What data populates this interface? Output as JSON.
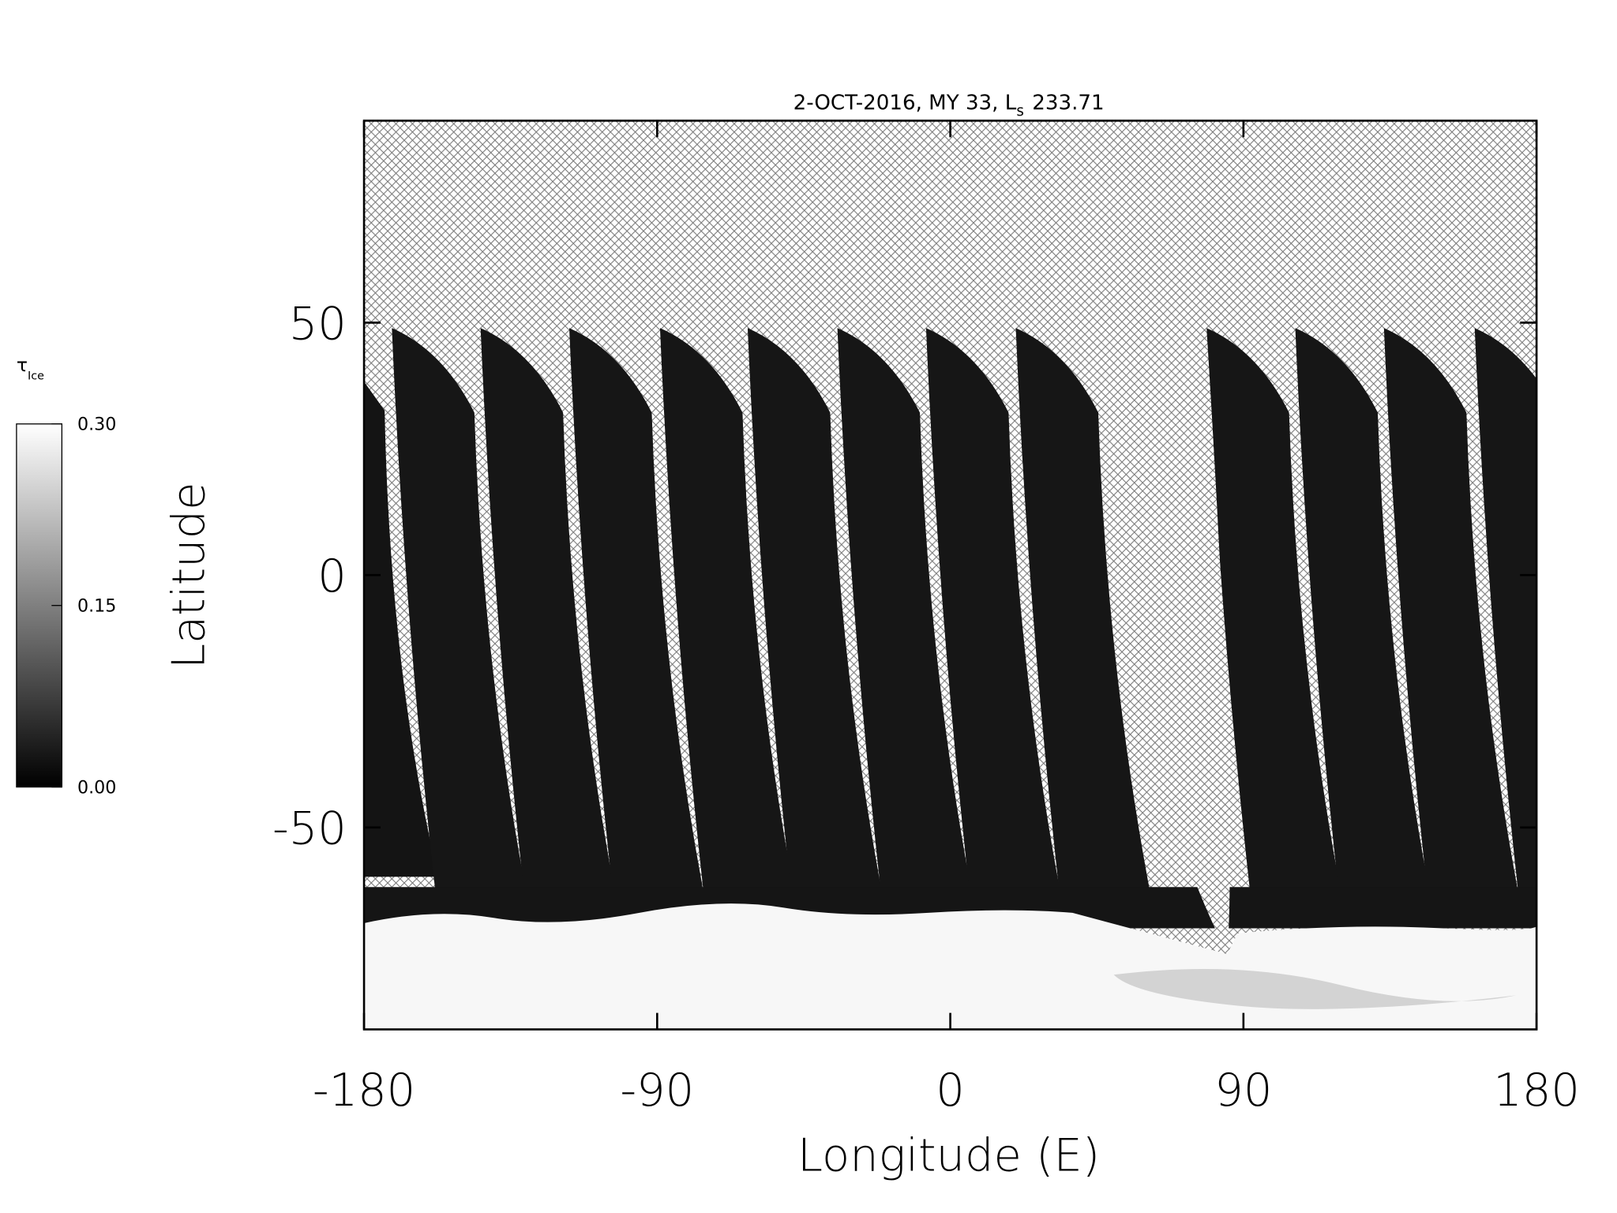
{
  "chart_data": {
    "type": "map",
    "title": {
      "text": "2-OCT-2016, MY 33,  L",
      "subscript": "s",
      "value": 233.71
    },
    "x_label": "Longitude (E)",
    "y_label": "Latitude",
    "xlim": [
      -180,
      180
    ],
    "xticks": [
      -180,
      -90,
      0,
      90,
      180
    ],
    "ylim": [
      -90,
      90
    ],
    "yticks": [
      -50,
      0,
      50
    ],
    "colorbar": {
      "label": "τ",
      "label_subscript": "Ice",
      "lim": [
        0,
        0.3
      ],
      "ticks": [
        {
          "value": 0,
          "label": "0.00"
        },
        {
          "value": 0.15,
          "label": "0.15"
        },
        {
          "value": 0.3,
          "label": "0.30"
        }
      ],
      "colors": [
        "#000000",
        "#ffffff"
      ]
    }
  }
}
